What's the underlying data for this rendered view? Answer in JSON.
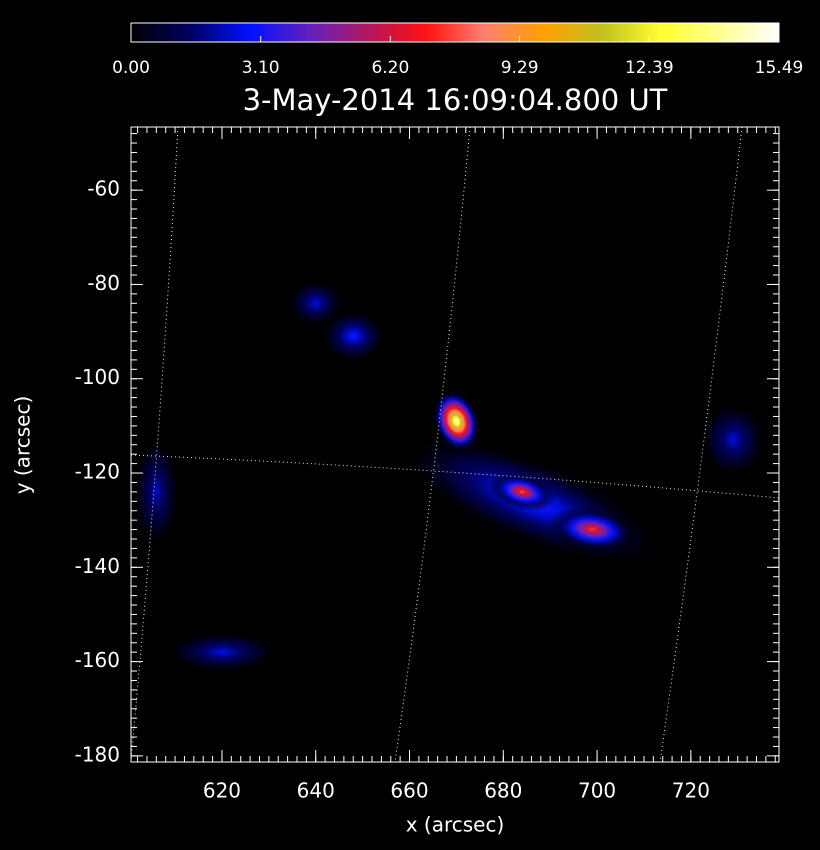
{
  "chart_data": {
    "type": "image-map",
    "title": "3-May-2014 16:09:04.800 UT",
    "x_label": "x (arcsec)",
    "y_label": "y (arcsec)",
    "xlim": [
      600.6,
      738.8
    ],
    "ylim": [
      -181.3,
      -46.6
    ],
    "xticks": [
      620,
      640,
      660,
      680,
      700,
      720
    ],
    "yticks": [
      -60,
      -80,
      -100,
      -120,
      -140,
      -160,
      -180
    ],
    "colorbar_lim": [
      0,
      15.49
    ],
    "colorbar_ticks": [
      {
        "value": 0,
        "label": "0.00"
      },
      {
        "value": 3.1,
        "label": "3.10"
      },
      {
        "value": 6.2,
        "label": "6.20"
      },
      9.29,
      12.39,
      15.49
    ],
    "colormap": [
      "#000000",
      "#000060",
      "#0010ff",
      "#6020c0",
      "#b01860",
      "#ff1010",
      "#ff8070",
      "#ffa000",
      "#c0c020",
      "#ffff30",
      "#ffff90",
      "#ffffff"
    ],
    "sources": [
      {
        "x": 686,
        "y": -126,
        "value": 3.6
      },
      {
        "x": 648,
        "y": -91,
        "value": 3.2
      },
      {
        "x": 640,
        "y": -84,
        "value": 2.6
      },
      {
        "x": 620,
        "y": -158,
        "value": 2.6
      },
      {
        "x": 729,
        "y": -113,
        "value": 2.5
      },
      {
        "x": 606,
        "y": -124,
        "value": 2.3
      },
      {
        "x": 684,
        "y": -124,
        "value": 8.0
      },
      {
        "x": 699,
        "y": -132,
        "value": 7.6
      },
      {
        "x": 670,
        "y": -109,
        "value": 15.49
      }
    ]
  }
}
